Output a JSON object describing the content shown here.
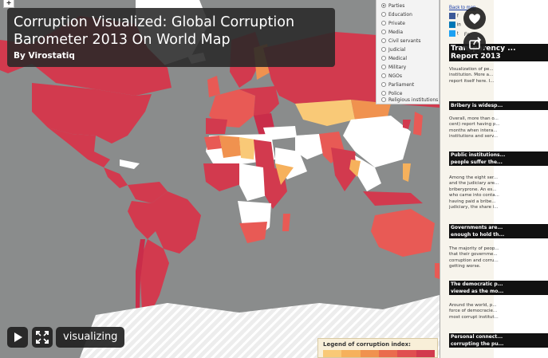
{
  "title_card": {
    "title": "Corruption Visualized: Global Corruption Barometer 2013 On World Map",
    "author": "By Virostatiq"
  },
  "map": {
    "zoom_in": "+",
    "categories": [
      {
        "label": "Parties",
        "selected": true
      },
      {
        "label": "Education",
        "selected": false
      },
      {
        "label": "Private",
        "selected": false
      },
      {
        "label": "Media",
        "selected": false
      },
      {
        "label": "Civil servants",
        "selected": false
      },
      {
        "label": "Judicial",
        "selected": false
      },
      {
        "label": "Medical",
        "selected": false
      },
      {
        "label": "Military",
        "selected": false
      },
      {
        "label": "NGOs",
        "selected": false
      },
      {
        "label": "Parliament",
        "selected": false
      },
      {
        "label": "Police",
        "selected": false
      },
      {
        "label": "Religious institutions",
        "selected": false
      }
    ],
    "colors": {
      "ocean": "#8a8c8c",
      "no_data": "#ffffff",
      "low": "#f6b15c",
      "medium": "#f0924f",
      "high": "#e85a55",
      "very_high": "#d23a4e",
      "extreme": "#c92d4a"
    }
  },
  "legend": {
    "title": "Legend of corruption index:",
    "colors": [
      "#f9c977",
      "#f6b15c",
      "#f0924f",
      "#ea6c4e",
      "#e04f50",
      "#d23a4e"
    ]
  },
  "side": {
    "back_link": "Back to map",
    "share": [
      "f",
      "in",
      "t",
      "Fo"
    ],
    "heading": "Transparency ...\nReport 2013",
    "intro": "Visualization of pe...\ninstitution. More a...\nreport itself here. I...",
    "intro_link": "here",
    "sections": [
      {
        "head": "Bribery is widesp...",
        "text": "Overall, more than o...\ncent) report having p...\nmonths when intera...\ninstitutions and serv..."
      },
      {
        "head": "Public institutions...\npeople suffer the...",
        "text": "Among the eight ser...\nand the judiciary are...\nbriberyprone. An es...\nwho came into conta...\nhaving paid a bribe...\njudiciary, the share i..."
      },
      {
        "head": "Governments are...\nenough to hold th...",
        "text": "The majority of peop...\nthat their governme...\ncorruption and corru...\ngetting worse."
      },
      {
        "head": "The democratic p...\nviewed as the mo...",
        "text": "Around the world, p...\nforce of democracie...\nmost corrupt institut..."
      },
      {
        "head": "Personal connect...\ncorrupting the pu...",
        "text": ""
      }
    ]
  },
  "player": {
    "play_icon": "play-icon",
    "fullscreen_icon": "fullscreen-icon",
    "label": "visualizing",
    "like_icon": "heart-icon",
    "share_icon": "share-icon"
  }
}
